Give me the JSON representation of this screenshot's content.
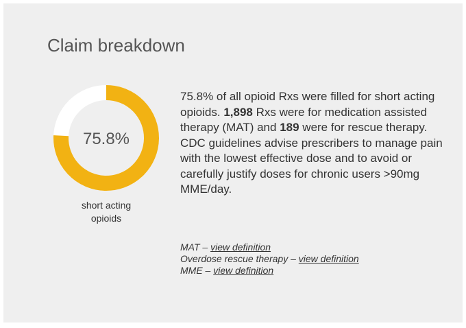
{
  "title": "Claim breakdown",
  "chart_data": {
    "type": "donut",
    "values": [
      75.8
    ],
    "value_labels": [
      "75.8%"
    ],
    "ylim": [
      0,
      100
    ],
    "color": "#f2b213",
    "track_color": "#ffffff",
    "label": "short acting opioids"
  },
  "summary": [
    "75.8% of all opioid Rxs were filled for short acting opioids. ",
    "1,898",
    " Rxs were for medication assisted therapy (MAT) and ",
    "189",
    " were for rescue therapy. CDC guidelines advise prescribers to manage pain with the lowest effective dose and to avoid or carefully justify doses for chronic users >90mg MME/day."
  ],
  "definitions": [
    {
      "term": "MAT – ",
      "link": "view definition"
    },
    {
      "term": "Overdose rescue therapy – ",
      "link": "view definition"
    },
    {
      "term": "MME – ",
      "link": "view definition"
    }
  ]
}
